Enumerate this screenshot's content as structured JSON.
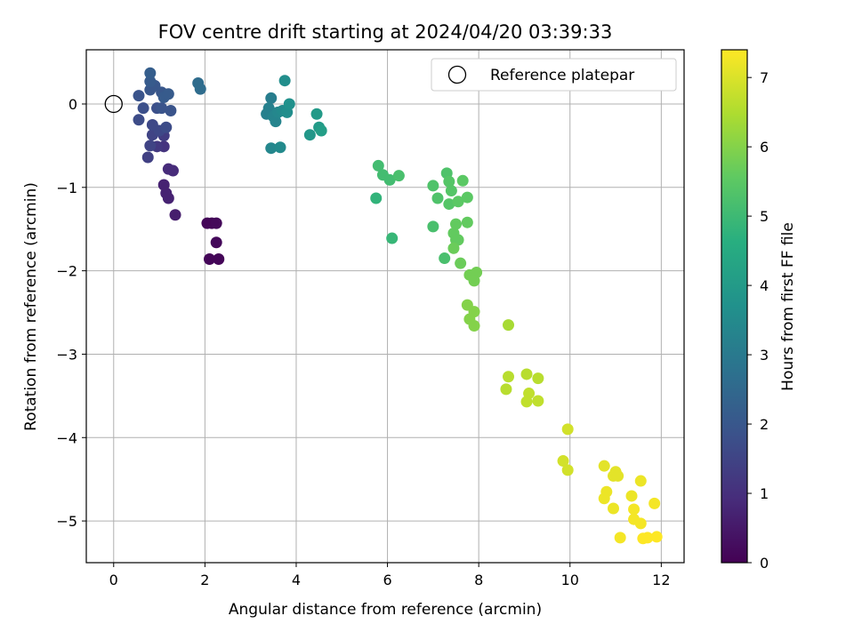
{
  "chart_data": {
    "type": "scatter",
    "title": "FOV centre drift starting at 2024/04/20 03:39:33",
    "xlabel": "Angular distance from reference (arcmin)",
    "ylabel": "Rotation from reference (arcmin)",
    "xlim": [
      -0.6,
      12.5
    ],
    "ylim": [
      -5.5,
      0.65
    ],
    "xticks": [
      0,
      2,
      4,
      6,
      8,
      10,
      12
    ],
    "yticks": [
      0,
      -1,
      -2,
      -3,
      -4,
      -5
    ],
    "xtick_labels": [
      "0",
      "2",
      "4",
      "6",
      "8",
      "10",
      "12"
    ],
    "ytick_labels": [
      "0",
      "−1",
      "−2",
      "−3",
      "−4",
      "−5"
    ],
    "grid": true,
    "legend": {
      "position": "top-right",
      "label": "Reference platepar"
    },
    "reference_point": {
      "x": 0,
      "y": 0
    },
    "colorbar": {
      "label": "Hours from first FF file",
      "colormap": "viridis",
      "range": [
        0,
        7.4
      ],
      "ticks": [
        0,
        1,
        2,
        3,
        4,
        5,
        6,
        7
      ],
      "tick_labels": [
        "0",
        "1",
        "2",
        "3",
        "4",
        "5",
        "6",
        "7"
      ]
    },
    "points": [
      {
        "x": 2.05,
        "y": -1.43,
        "t": 0.1
      },
      {
        "x": 2.15,
        "y": -1.43,
        "t": 0.1
      },
      {
        "x": 2.25,
        "y": -1.43,
        "t": 0.15
      },
      {
        "x": 2.25,
        "y": -1.66,
        "t": 0.15
      },
      {
        "x": 2.1,
        "y": -1.86,
        "t": 0.1
      },
      {
        "x": 2.3,
        "y": -1.86,
        "t": 0.1
      },
      {
        "x": 1.35,
        "y": -1.33,
        "t": 0.6
      },
      {
        "x": 1.2,
        "y": -1.13,
        "t": 0.7
      },
      {
        "x": 1.15,
        "y": -1.07,
        "t": 0.7
      },
      {
        "x": 1.1,
        "y": -0.97,
        "t": 0.7
      },
      {
        "x": 1.2,
        "y": -0.78,
        "t": 0.9
      },
      {
        "x": 1.3,
        "y": -0.8,
        "t": 0.9
      },
      {
        "x": 1.1,
        "y": -0.51,
        "t": 1.1
      },
      {
        "x": 0.95,
        "y": -0.51,
        "t": 1.2
      },
      {
        "x": 1.1,
        "y": -0.38,
        "t": 1.3
      },
      {
        "x": 0.75,
        "y": -0.64,
        "t": 1.4
      },
      {
        "x": 0.8,
        "y": -0.5,
        "t": 1.5
      },
      {
        "x": 0.85,
        "y": -0.37,
        "t": 1.5
      },
      {
        "x": 0.85,
        "y": -0.25,
        "t": 1.6
      },
      {
        "x": 1.0,
        "y": -0.32,
        "t": 1.6
      },
      {
        "x": 1.15,
        "y": -0.28,
        "t": 1.7
      },
      {
        "x": 0.55,
        "y": -0.19,
        "t": 1.7
      },
      {
        "x": 0.65,
        "y": -0.05,
        "t": 1.8
      },
      {
        "x": 0.95,
        "y": -0.05,
        "t": 1.8
      },
      {
        "x": 1.05,
        "y": -0.05,
        "t": 1.9
      },
      {
        "x": 1.25,
        "y": -0.08,
        "t": 1.9
      },
      {
        "x": 0.55,
        "y": 0.1,
        "t": 1.9
      },
      {
        "x": 0.8,
        "y": 0.17,
        "t": 2.0
      },
      {
        "x": 0.9,
        "y": 0.22,
        "t": 2.0
      },
      {
        "x": 1.05,
        "y": 0.14,
        "t": 2.0
      },
      {
        "x": 1.1,
        "y": 0.08,
        "t": 2.1
      },
      {
        "x": 1.2,
        "y": 0.12,
        "t": 2.1
      },
      {
        "x": 0.8,
        "y": 0.27,
        "t": 2.1
      },
      {
        "x": 0.8,
        "y": 0.37,
        "t": 2.2
      },
      {
        "x": 1.85,
        "y": 0.25,
        "t": 2.6
      },
      {
        "x": 1.9,
        "y": 0.18,
        "t": 2.6
      },
      {
        "x": 3.45,
        "y": 0.07,
        "t": 3.1
      },
      {
        "x": 3.4,
        "y": -0.05,
        "t": 3.2
      },
      {
        "x": 3.35,
        "y": -0.12,
        "t": 3.2
      },
      {
        "x": 3.5,
        "y": -0.15,
        "t": 3.3
      },
      {
        "x": 3.55,
        "y": -0.21,
        "t": 3.3
      },
      {
        "x": 3.6,
        "y": -0.1,
        "t": 3.4
      },
      {
        "x": 3.7,
        "y": -0.08,
        "t": 3.5
      },
      {
        "x": 3.45,
        "y": -0.53,
        "t": 3.4
      },
      {
        "x": 3.65,
        "y": -0.52,
        "t": 3.5
      },
      {
        "x": 3.75,
        "y": 0.28,
        "t": 3.6
      },
      {
        "x": 3.8,
        "y": -0.1,
        "t": 3.6
      },
      {
        "x": 3.85,
        "y": 0.0,
        "t": 3.7
      },
      {
        "x": 4.3,
        "y": -0.37,
        "t": 3.9
      },
      {
        "x": 4.45,
        "y": -0.12,
        "t": 4.0
      },
      {
        "x": 4.5,
        "y": -0.28,
        "t": 4.0
      },
      {
        "x": 4.55,
        "y": -0.32,
        "t": 4.1
      },
      {
        "x": 5.75,
        "y": -1.13,
        "t": 4.8
      },
      {
        "x": 6.1,
        "y": -1.61,
        "t": 4.9
      },
      {
        "x": 5.8,
        "y": -0.74,
        "t": 5.1
      },
      {
        "x": 5.9,
        "y": -0.85,
        "t": 5.1
      },
      {
        "x": 6.05,
        "y": -0.91,
        "t": 5.1
      },
      {
        "x": 6.25,
        "y": -0.86,
        "t": 5.2
      },
      {
        "x": 7.0,
        "y": -1.47,
        "t": 5.2
      },
      {
        "x": 7.25,
        "y": -1.85,
        "t": 5.2
      },
      {
        "x": 7.0,
        "y": -0.98,
        "t": 5.3
      },
      {
        "x": 7.1,
        "y": -1.13,
        "t": 5.3
      },
      {
        "x": 7.3,
        "y": -0.83,
        "t": 5.3
      },
      {
        "x": 7.35,
        "y": -0.93,
        "t": 5.4
      },
      {
        "x": 7.4,
        "y": -1.04,
        "t": 5.4
      },
      {
        "x": 7.35,
        "y": -1.2,
        "t": 5.4
      },
      {
        "x": 7.55,
        "y": -1.17,
        "t": 5.5
      },
      {
        "x": 7.65,
        "y": -0.92,
        "t": 5.5
      },
      {
        "x": 7.75,
        "y": -1.12,
        "t": 5.5
      },
      {
        "x": 7.5,
        "y": -1.44,
        "t": 5.6
      },
      {
        "x": 7.75,
        "y": -1.42,
        "t": 5.6
      },
      {
        "x": 7.45,
        "y": -1.55,
        "t": 5.6
      },
      {
        "x": 7.5,
        "y": -1.63,
        "t": 5.6
      },
      {
        "x": 7.55,
        "y": -1.63,
        "t": 5.6
      },
      {
        "x": 7.45,
        "y": -1.73,
        "t": 5.7
      },
      {
        "x": 7.6,
        "y": -1.91,
        "t": 5.7
      },
      {
        "x": 7.8,
        "y": -2.05,
        "t": 5.8
      },
      {
        "x": 7.95,
        "y": -2.02,
        "t": 5.8
      },
      {
        "x": 7.9,
        "y": -2.12,
        "t": 5.8
      },
      {
        "x": 7.75,
        "y": -2.41,
        "t": 6.0
      },
      {
        "x": 7.9,
        "y": -2.49,
        "t": 6.0
      },
      {
        "x": 7.8,
        "y": -2.58,
        "t": 6.0
      },
      {
        "x": 7.9,
        "y": -2.66,
        "t": 6.0
      },
      {
        "x": 8.65,
        "y": -2.65,
        "t": 6.4
      },
      {
        "x": 8.65,
        "y": -3.27,
        "t": 6.6
      },
      {
        "x": 8.6,
        "y": -3.42,
        "t": 6.6
      },
      {
        "x": 9.05,
        "y": -3.24,
        "t": 6.6
      },
      {
        "x": 9.3,
        "y": -3.29,
        "t": 6.6
      },
      {
        "x": 9.1,
        "y": -3.47,
        "t": 6.7
      },
      {
        "x": 9.05,
        "y": -3.57,
        "t": 6.7
      },
      {
        "x": 9.3,
        "y": -3.56,
        "t": 6.7
      },
      {
        "x": 9.95,
        "y": -3.9,
        "t": 6.9
      },
      {
        "x": 9.85,
        "y": -4.28,
        "t": 6.9
      },
      {
        "x": 9.95,
        "y": -4.39,
        "t": 6.9
      },
      {
        "x": 10.75,
        "y": -4.34,
        "t": 7.1
      },
      {
        "x": 10.95,
        "y": -4.46,
        "t": 7.1
      },
      {
        "x": 11.0,
        "y": -4.41,
        "t": 7.1
      },
      {
        "x": 11.05,
        "y": -4.46,
        "t": 7.1
      },
      {
        "x": 11.55,
        "y": -4.52,
        "t": 7.2
      },
      {
        "x": 10.8,
        "y": -4.65,
        "t": 7.2
      },
      {
        "x": 10.75,
        "y": -4.73,
        "t": 7.2
      },
      {
        "x": 10.95,
        "y": -4.85,
        "t": 7.2
      },
      {
        "x": 11.35,
        "y": -4.7,
        "t": 7.2
      },
      {
        "x": 11.4,
        "y": -4.86,
        "t": 7.3
      },
      {
        "x": 11.4,
        "y": -4.98,
        "t": 7.3
      },
      {
        "x": 11.55,
        "y": -5.03,
        "t": 7.3
      },
      {
        "x": 11.85,
        "y": -4.79,
        "t": 7.3
      },
      {
        "x": 11.1,
        "y": -5.2,
        "t": 7.3
      },
      {
        "x": 11.6,
        "y": -5.21,
        "t": 7.4
      },
      {
        "x": 11.7,
        "y": -5.2,
        "t": 7.4
      },
      {
        "x": 11.9,
        "y": -5.19,
        "t": 7.4
      }
    ]
  }
}
